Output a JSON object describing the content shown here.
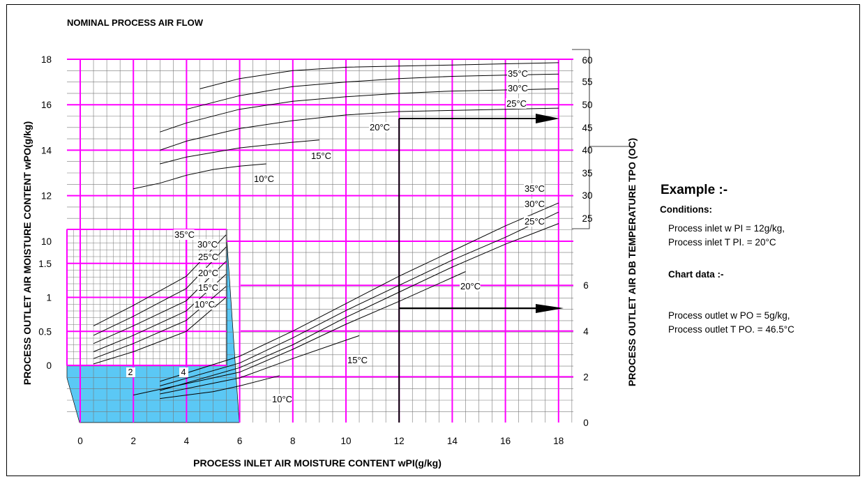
{
  "chart_data": {
    "type": "line",
    "title": "NOMINAL PROCESS AIR FLOW",
    "xlabel": "PROCESS INLET AIR MOISTURE CONTENT wPI(g/kg)",
    "ylabel_left": "PROCESS OUTLET AIR MOISTURE CONTENT wPO(g/kg)",
    "ylabel_right": "PROCESS OUTLET AIR DB TEMPERATURE TPO (OC)",
    "xlim": [
      0,
      18
    ],
    "x_ticks": [
      "0",
      "2",
      "4",
      "6",
      "8",
      "10",
      "12",
      "14",
      "16",
      "18"
    ],
    "ylim_left": [
      0,
      18
    ],
    "y_ticks_left": [
      "18",
      "16",
      "14",
      "12",
      "10"
    ],
    "y_ticks_right_outlet": [
      "6",
      "4",
      "2",
      "0"
    ],
    "y_ticks_temp": [
      "60",
      "55",
      "50",
      "45",
      "40",
      "35",
      "30",
      "25"
    ],
    "inset": {
      "y_ticks": [
        "1.5",
        "1",
        "0.5",
        "0"
      ],
      "x_ticks": [
        "2",
        "4"
      ],
      "series": [
        {
          "name": "35°C",
          "points": [
            [
              0.5,
              0.58
            ],
            [
              2,
              0.88
            ],
            [
              4,
              1.31
            ],
            [
              5.5,
              1.92
            ]
          ]
        },
        {
          "name": "30°C",
          "points": [
            [
              0.5,
              0.44
            ],
            [
              2,
              0.72
            ],
            [
              4,
              1.13
            ],
            [
              5.5,
              1.74
            ]
          ]
        },
        {
          "name": "25°C",
          "points": [
            [
              0.5,
              0.32
            ],
            [
              2,
              0.58
            ],
            [
              4,
              0.95
            ],
            [
              5.5,
              1.53
            ]
          ]
        },
        {
          "name": "20°C",
          "points": [
            [
              0.5,
              0.2
            ],
            [
              2,
              0.44
            ],
            [
              4,
              0.8
            ],
            [
              5.5,
              1.34
            ]
          ]
        },
        {
          "name": "15°C",
          "points": [
            [
              0.5,
              0.1
            ],
            [
              2,
              0.32
            ],
            [
              4,
              0.66
            ],
            [
              5.5,
              1.16
            ]
          ]
        },
        {
          "name": "10°C",
          "points": [
            [
              0.5,
              0.02
            ],
            [
              2,
              0.2
            ],
            [
              4,
              0.5
            ],
            [
              5.5,
              1.0
            ]
          ]
        }
      ]
    },
    "upper_series": [
      {
        "name": "35°C",
        "points": [
          [
            4.5,
            16.7
          ],
          [
            6,
            17.15
          ],
          [
            8,
            17.5
          ],
          [
            10,
            17.65
          ],
          [
            12,
            17.7
          ],
          [
            14,
            17.75
          ],
          [
            16,
            17.8
          ],
          [
            18,
            17.85
          ]
        ]
      },
      {
        "name": "30°C",
        "points": [
          [
            4,
            15.8
          ],
          [
            6,
            16.4
          ],
          [
            8,
            16.8
          ],
          [
            10,
            17.0
          ],
          [
            12,
            17.15
          ],
          [
            14,
            17.25
          ],
          [
            16,
            17.3
          ],
          [
            18,
            17.35
          ]
        ]
      },
      {
        "name": "25°C",
        "points": [
          [
            3,
            14.8
          ],
          [
            4,
            15.2
          ],
          [
            6,
            15.8
          ],
          [
            8,
            16.15
          ],
          [
            10,
            16.35
          ],
          [
            12,
            16.5
          ],
          [
            14,
            16.6
          ],
          [
            16,
            16.65
          ],
          [
            18,
            16.7
          ]
        ]
      },
      {
        "name": "20°C",
        "points": [
          [
            3,
            14.0
          ],
          [
            4,
            14.4
          ],
          [
            6,
            14.95
          ],
          [
            8,
            15.3
          ],
          [
            10,
            15.55
          ],
          [
            12,
            15.7
          ],
          [
            14,
            15.75
          ],
          [
            16,
            15.8
          ],
          [
            18,
            15.85
          ]
        ]
      },
      {
        "name": "15°C",
        "points": [
          [
            3,
            13.4
          ],
          [
            4,
            13.7
          ],
          [
            6,
            14.1
          ],
          [
            8,
            14.35
          ],
          [
            9,
            14.45
          ]
        ]
      },
      {
        "name": "10°C",
        "points": [
          [
            2,
            12.3
          ],
          [
            3,
            12.55
          ],
          [
            4,
            12.9
          ],
          [
            5,
            13.15
          ],
          [
            6,
            13.3
          ],
          [
            7,
            13.4
          ]
        ]
      }
    ],
    "lower_series": [
      {
        "name": "35°C",
        "points": [
          [
            3,
            1.8
          ],
          [
            6,
            2.9
          ],
          [
            8,
            4.0
          ],
          [
            10,
            5.2
          ],
          [
            12,
            6.4
          ],
          [
            14,
            7.5
          ],
          [
            16,
            8.6
          ],
          [
            18,
            9.6
          ]
        ]
      },
      {
        "name": "30°C",
        "points": [
          [
            3,
            1.6
          ],
          [
            6,
            2.6
          ],
          [
            8,
            3.7
          ],
          [
            10,
            4.9
          ],
          [
            12,
            6.0
          ],
          [
            14,
            7.1
          ],
          [
            16,
            8.1
          ],
          [
            18,
            9.2
          ]
        ]
      },
      {
        "name": "25°C",
        "points": [
          [
            3,
            1.4
          ],
          [
            6,
            2.4
          ],
          [
            8,
            3.4
          ],
          [
            10,
            4.6
          ],
          [
            12,
            5.7
          ],
          [
            14,
            6.8
          ],
          [
            16,
            7.8
          ],
          [
            18,
            8.7
          ]
        ]
      },
      {
        "name": "20°C",
        "points": [
          [
            2,
            1.2
          ],
          [
            6,
            2.2
          ],
          [
            8,
            3.2
          ],
          [
            10,
            4.3
          ],
          [
            12,
            5.3
          ],
          [
            14.5,
            6.6
          ]
        ]
      },
      {
        "name": "15°C",
        "points": [
          [
            3,
            1.25
          ],
          [
            6,
            1.95
          ],
          [
            8,
            2.8
          ],
          [
            10,
            3.6
          ],
          [
            10.5,
            3.8
          ]
        ]
      },
      {
        "name": "10°C",
        "points": [
          [
            3,
            1.05
          ],
          [
            5,
            1.35
          ],
          [
            6,
            1.6
          ],
          [
            7,
            1.9
          ],
          [
            7.5,
            2.05
          ]
        ]
      }
    ],
    "grid": true,
    "grid_color": "#ff00ff",
    "fill_color": "#5bc8f5",
    "example_arrows": {
      "x": 12,
      "outlet_moisture": 5,
      "outlet_temp": 46.5
    },
    "curve_labels": {
      "upper": [
        "35°C",
        "30°C",
        "25°C",
        "20°C",
        "15°C",
        "10°C"
      ],
      "lower": [
        "35°C",
        "30°C",
        "25°C",
        "20°C",
        "15°C",
        "10°C"
      ],
      "inset": [
        "35°C",
        "30°C",
        "25°C",
        "20°C",
        "15°C",
        "10°C"
      ]
    }
  },
  "example": {
    "heading": "Example :-",
    "conditions_label": "Conditions:",
    "inputs": [
      "Process inlet w PI = 12g/kg,",
      "Process inlet T PI. = 20°C"
    ],
    "chart_label": "Chart data :-",
    "outputs": [
      "Process outlet w PO = 5g/kg,",
      "Process outlet T PO. = 46.5°C"
    ]
  }
}
